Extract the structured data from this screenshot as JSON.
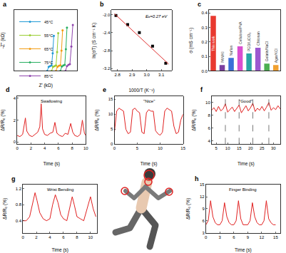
{
  "chart_data": [
    {
      "panel": "a",
      "type": "line",
      "x_label": "Z' (kΩ)",
      "y_label": "-Z'' (kΩ)",
      "legend": "top-left",
      "tick_labels": false,
      "xlim": [
        0,
        8.6
      ],
      "ylim": [
        0,
        4.5
      ],
      "series": [
        {
          "name": "45°C",
          "color": "#1f9ad6",
          "marker": "circle",
          "line_style": "solid",
          "x": [
            4.5,
            4.7,
            4.9,
            5.1,
            5.25,
            5.4
          ],
          "values": [
            0,
            0.3,
            0.35,
            0.4,
            1.3,
            2.6
          ]
        },
        {
          "name": "55°C",
          "color": "#9acd32",
          "marker": "circle",
          "line_style": "solid",
          "x": [
            5.1,
            5.3,
            5.5,
            5.7,
            5.85,
            6.0
          ],
          "values": [
            0,
            0.3,
            0.35,
            0.4,
            1.4,
            2.8
          ]
        },
        {
          "name": "65°C",
          "color": "#f39c12",
          "marker": "circle",
          "line_style": "solid",
          "x": [
            5.7,
            5.9,
            6.1,
            6.3,
            6.45,
            6.6
          ],
          "values": [
            0,
            0.3,
            0.38,
            0.42,
            1.5,
            3.0
          ]
        },
        {
          "name": "75°C",
          "color": "#27ae60",
          "marker": "circle",
          "line_style": "solid",
          "x": [
            6.3,
            6.5,
            6.7,
            6.9,
            7.05,
            7.2
          ],
          "values": [
            0,
            0.32,
            0.4,
            0.45,
            1.6,
            3.2
          ]
        },
        {
          "name": "85°C",
          "color": "#8e44ad",
          "marker": "circle",
          "line_style": "solid",
          "x": [
            7.0,
            7.2,
            7.4,
            7.6,
            7.8,
            8.0
          ],
          "values": [
            0,
            0.35,
            0.45,
            0.5,
            1.8,
            3.4
          ]
        }
      ]
    },
    {
      "panel": "b",
      "type": "scatter",
      "x_label": "1000/T (K⁻¹)",
      "y_label": "ln(σT) (S cm⁻¹ K)",
      "annotation": "Eₐ=0.27 eV",
      "xlim": [
        2.76,
        3.17
      ],
      "ylim": [
        -3.25,
        -1.9
      ],
      "xticks": [
        2.8,
        2.9,
        {
          "value": 3,
          "label": "3.0"
        },
        3.1
      ],
      "yticks": [
        -3.2,
        -2.8,
        -2.4,
        {
          "value": -2,
          "label": "-2.0"
        }
      ],
      "series": [
        {
          "type": "scatter",
          "color": "#000000",
          "marker": "square",
          "x": [
            2.79,
            2.87,
            2.95,
            3.04,
            3.13
          ],
          "values": [
            -2.02,
            -2.22,
            -2.4,
            -2.7,
            -3.08
          ]
        },
        {
          "type": "line",
          "color": "#e03030",
          "line_style": "solid",
          "x": [
            2.78,
            3.15
          ],
          "values": [
            -1.98,
            -3.1
          ]
        }
      ]
    },
    {
      "panel": "c",
      "type": "bar",
      "y_label": "σ (mS cm⁻¹)",
      "tick_labels": "y",
      "categories": [
        "This work",
        "PAN/KI",
        "Nafion",
        "Cellulose/PVA",
        "PEO/LiClO₄",
        "Chitosan",
        "Gelatin/NaCl",
        "Agar/KCl"
      ],
      "values": [
        0.38,
        0.04,
        0.09,
        0.17,
        0.12,
        0.16,
        0.05,
        0.04
      ],
      "colors": [
        "#e8392f",
        "#7b3fa0",
        "#3a6fd8",
        "#d94fd0",
        "#2aa6a6",
        "#9b59d0",
        "#4caf50",
        "#f0a030"
      ],
      "ylim": [
        0,
        0.42
      ],
      "yticks": [
        {
          "value": 0,
          "label": "0.0"
        },
        0.1,
        0.2,
        0.3,
        0.4
      ]
    },
    {
      "panel": "d",
      "type": "line",
      "label": "Swallowing",
      "x_label": "Time (s)",
      "y_label": "ΔR/R₀ (%)",
      "xlim": [
        0,
        10
      ],
      "ylim": [
        -0.2,
        4.2
      ],
      "xticks": [
        0,
        2,
        4,
        6,
        8,
        10
      ],
      "yticks": [
        0,
        2,
        4
      ],
      "x": [
        0,
        0.4,
        0.8,
        1.0,
        1.2,
        1.4,
        1.8,
        2.2,
        2.6,
        3.0,
        3.3,
        3.5,
        3.7,
        4.0,
        4.4,
        4.8,
        5.2,
        5.5,
        5.8,
        6.2,
        6.6,
        7.0,
        7.4,
        7.8,
        8.1,
        8.4,
        8.8,
        9.2,
        9.5,
        9.8,
        10
      ],
      "series": [
        {
          "color": "#e02020",
          "line_style": "solid",
          "values": [
            0.6,
            0.5,
            0.7,
            1.6,
            2.2,
            1.0,
            0.6,
            0.5,
            0.7,
            0.9,
            1.4,
            3.5,
            1.2,
            0.7,
            0.6,
            0.8,
            0.9,
            1.8,
            0.8,
            0.6,
            0.5,
            0.8,
            0.7,
            1.7,
            0.9,
            0.6,
            0.5,
            0.7,
            2.0,
            0.8,
            0.6
          ]
        }
      ]
    },
    {
      "panel": "e",
      "type": "line",
      "label": "\"Nice\"",
      "x_label": "Time (s)",
      "y_label": "ΔR/R₀ (%)",
      "xlim": [
        0,
        15
      ],
      "ylim": [
        0,
        16
      ],
      "xticks": [
        0,
        5,
        10,
        15
      ],
      "yticks": [
        0,
        5,
        10,
        15
      ],
      "x": [
        0,
        0.5,
        1.0,
        1.5,
        2.0,
        2.5,
        3.0,
        3.5,
        4.0,
        4.5,
        5.0,
        5.5,
        6.0,
        6.5,
        7.0,
        7.5,
        8.0,
        8.5,
        9.0,
        9.5,
        10.0,
        10.5,
        11.0,
        11.5,
        12.0,
        12.5,
        13.0,
        13.5,
        14.0,
        14.5,
        15.0
      ],
      "series": [
        {
          "color": "#e02020",
          "line_style": "solid",
          "values": [
            4,
            11,
            12,
            11.5,
            11,
            5,
            3.5,
            4,
            11.5,
            12,
            11,
            10.5,
            4,
            3.5,
            10.5,
            11.5,
            11,
            11,
            4.5,
            3.5,
            3,
            4,
            11,
            12,
            11.5,
            11,
            6,
            3.5,
            4,
            8,
            10
          ]
        }
      ]
    },
    {
      "panel": "f",
      "type": "line",
      "label": "\"Good\"",
      "x_label": "Time (s)",
      "y_label": "ΔR/R₀ (%)",
      "xlim": [
        3,
        33
      ],
      "ylim": [
        3.5,
        11
      ],
      "xticks": [
        5,
        10,
        15,
        20,
        25,
        30
      ],
      "yticks": [
        4,
        6,
        8,
        10
      ],
      "vlines": [
        9,
        15,
        21,
        28
      ],
      "x": [
        3,
        4,
        5,
        6,
        7,
        8,
        9,
        10,
        11,
        12,
        13,
        14,
        15,
        16,
        17,
        18,
        19,
        20,
        21,
        22,
        23,
        24,
        25,
        26,
        27,
        28,
        29,
        30,
        31,
        32,
        33
      ],
      "series": [
        {
          "color": "#e02020",
          "line_style": "solid",
          "values": [
            8.8,
            9.2,
            8.6,
            9.4,
            8.7,
            9.0,
            9.8,
            8.5,
            8.9,
            9.3,
            8.6,
            9.1,
            9.6,
            8.4,
            9.0,
            9.5,
            8.7,
            9.2,
            9.9,
            8.6,
            9.1,
            8.8,
            9.4,
            8.7,
            9.3,
            10.0,
            8.8,
            9.2,
            8.9,
            9.5,
            9.0
          ]
        }
      ]
    },
    {
      "panel": "g",
      "type": "line",
      "label": "Wrist Bending",
      "x_label": "Time (s)",
      "y_label": "ΔR/R₀ (%)",
      "xlim": [
        0,
        11
      ],
      "ylim": [
        0.1,
        1.3
      ],
      "xticks": [
        0,
        2,
        4,
        6,
        8,
        10
      ],
      "yticks": [
        0.4,
        0.8,
        1.2
      ],
      "x": [
        0,
        0.5,
        1.0,
        1.5,
        1.8,
        2.1,
        2.5,
        3.0,
        3.5,
        4.0,
        4.4,
        4.8,
        5.2,
        5.6,
        6.0,
        6.5,
        7.0,
        7.3,
        7.6,
        8.0,
        8.5,
        9.0,
        9.5,
        10.0,
        10.4,
        10.8
      ],
      "series": [
        {
          "color": "#e02020",
          "line_style": "solid",
          "values": [
            0.4,
            0.4,
            0.5,
            0.9,
            1.1,
            0.9,
            0.6,
            0.45,
            0.4,
            0.45,
            0.8,
            1.05,
            0.85,
            0.55,
            0.45,
            0.4,
            0.75,
            1.0,
            0.8,
            0.5,
            0.45,
            0.4,
            0.7,
            1.0,
            0.7,
            0.5
          ]
        }
      ]
    },
    {
      "panel": "h",
      "type": "line",
      "label": "Finger Binding",
      "x_label": "Time (s)",
      "y_label": "ΔR/R₀ (%)",
      "xlim": [
        0,
        16
      ],
      "ylim": [
        3,
        15
      ],
      "xticks": [
        0,
        3,
        6,
        9,
        12,
        15
      ],
      "yticks": [
        3,
        6,
        9,
        12,
        15
      ],
      "x": [
        0,
        0.5,
        1.0,
        1.5,
        2.0,
        2.5,
        3.0,
        3.5,
        4.0,
        4.5,
        5.0,
        5.5,
        6.0,
        6.5,
        7.0,
        7.5,
        8.0,
        8.5,
        9.0,
        9.5,
        10.0,
        10.5,
        11.0,
        11.5,
        12.0,
        12.5,
        13.0,
        13.5,
        14.0,
        14.5,
        15.0
      ],
      "series": [
        {
          "color": "#e02020",
          "line_style": "solid",
          "values": [
            5,
            6,
            11,
            7,
            5.5,
            5,
            5,
            6,
            10.5,
            7,
            5.5,
            5,
            5,
            6,
            11,
            6.5,
            5,
            5,
            5,
            6,
            10.5,
            7,
            5.5,
            5,
            5,
            6,
            11,
            6.5,
            5.5,
            5,
            5
          ]
        }
      ]
    }
  ]
}
